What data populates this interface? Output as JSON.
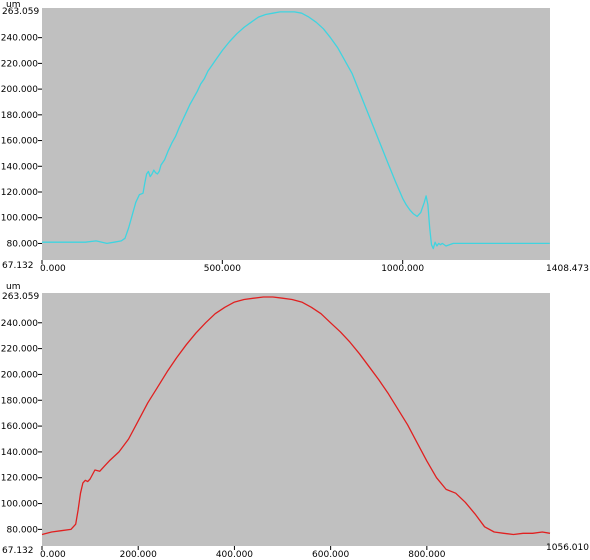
{
  "chart_data": [
    {
      "type": "line",
      "unit_label": "um",
      "ylim": [
        67.132,
        263.059
      ],
      "xlim": [
        0,
        1408.473
      ],
      "y_ticks": [
        "80.000",
        "100.000",
        "120.000",
        "140.000",
        "160.000",
        "180.000",
        "200.000",
        "220.000",
        "240.000"
      ],
      "y_tick_values": [
        80,
        100,
        120,
        140,
        160,
        180,
        200,
        220,
        240
      ],
      "y_top_label": "263.059",
      "y_bottom_label": "67.132",
      "x_ticks": [
        "0.000",
        "500.000",
        "1000.000"
      ],
      "x_tick_values": [
        0,
        500,
        1000
      ],
      "x_end_label": "1408.473",
      "line_color": "#3fd4e0",
      "plot_background": "#c0c0c0",
      "grid": false,
      "series": [
        {
          "x": [
            0,
            40,
            80,
            120,
            150,
            180,
            200,
            220,
            230,
            240,
            250,
            260,
            270,
            280,
            285,
            290,
            295,
            300,
            305,
            310,
            315,
            320,
            325,
            330,
            340,
            350,
            360,
            370,
            380,
            390,
            400,
            410,
            420,
            430,
            440,
            450,
            460,
            470,
            480,
            500,
            520,
            540,
            560,
            580,
            600,
            620,
            640,
            660,
            680,
            700,
            720,
            740,
            760,
            780,
            800,
            820,
            840,
            860,
            880,
            900,
            920,
            940,
            960,
            980,
            1000,
            1010,
            1020,
            1030,
            1040,
            1050,
            1060,
            1065,
            1070,
            1075,
            1080,
            1085,
            1090,
            1095,
            1100,
            1105,
            1110,
            1120,
            1140,
            1160,
            1200,
            1250,
            1300,
            1350,
            1408
          ],
          "y": [
            81,
            81,
            81,
            81,
            82,
            80,
            81,
            82,
            84,
            92,
            102,
            112,
            118,
            119,
            127,
            134,
            136,
            132,
            134,
            137,
            135,
            134,
            136,
            141,
            145,
            152,
            158,
            163,
            170,
            176,
            182,
            188,
            193,
            198,
            204,
            208,
            214,
            218,
            222,
            230,
            237,
            243,
            248,
            252,
            256,
            258,
            259,
            260,
            260,
            260,
            259,
            256,
            252,
            247,
            240,
            232,
            222,
            212,
            198,
            184,
            170,
            156,
            142,
            128,
            115,
            110,
            106,
            103,
            101,
            104,
            112,
            117,
            110,
            92,
            79,
            76,
            81,
            78,
            80,
            79,
            80,
            78,
            80,
            80,
            80,
            80,
            80,
            80,
            80
          ]
        }
      ]
    },
    {
      "type": "line",
      "unit_label": "um",
      "ylim": [
        67.132,
        263.059
      ],
      "xlim": [
        0,
        1056.01
      ],
      "y_ticks": [
        "80.000",
        "100.000",
        "120.000",
        "140.000",
        "160.000",
        "180.000",
        "200.000",
        "220.000",
        "240.000"
      ],
      "y_tick_values": [
        80,
        100,
        120,
        140,
        160,
        180,
        200,
        220,
        240
      ],
      "y_top_label": "263.059",
      "y_bottom_label": "67.132",
      "x_ticks": [
        "0.000",
        "200.000",
        "400.000",
        "600.000",
        "800.000"
      ],
      "x_tick_values": [
        0,
        200,
        400,
        600,
        800
      ],
      "x_end_label": "1056.010",
      "line_color": "#e02020",
      "plot_background": "#c0c0c0",
      "grid": false,
      "series": [
        {
          "x": [
            0,
            20,
            40,
            60,
            70,
            75,
            80,
            85,
            90,
            95,
            100,
            110,
            120,
            130,
            140,
            160,
            180,
            200,
            220,
            240,
            260,
            280,
            300,
            320,
            340,
            360,
            380,
            400,
            420,
            440,
            460,
            480,
            500,
            520,
            540,
            560,
            580,
            600,
            620,
            640,
            660,
            680,
            700,
            720,
            740,
            760,
            780,
            800,
            820,
            840,
            860,
            880,
            900,
            920,
            940,
            960,
            980,
            1000,
            1020,
            1040,
            1056
          ],
          "y": [
            76,
            78,
            79,
            80,
            84,
            95,
            108,
            116,
            118,
            117,
            119,
            126,
            125,
            129,
            133,
            140,
            150,
            164,
            178,
            190,
            202,
            213,
            223,
            232,
            240,
            247,
            252,
            256,
            258,
            259,
            260,
            260,
            259,
            258,
            256,
            252,
            247,
            240,
            233,
            225,
            216,
            206,
            196,
            185,
            173,
            161,
            147,
            133,
            120,
            111,
            108,
            101,
            92,
            82,
            78,
            77,
            76,
            77,
            77,
            78,
            77
          ]
        }
      ]
    }
  ]
}
